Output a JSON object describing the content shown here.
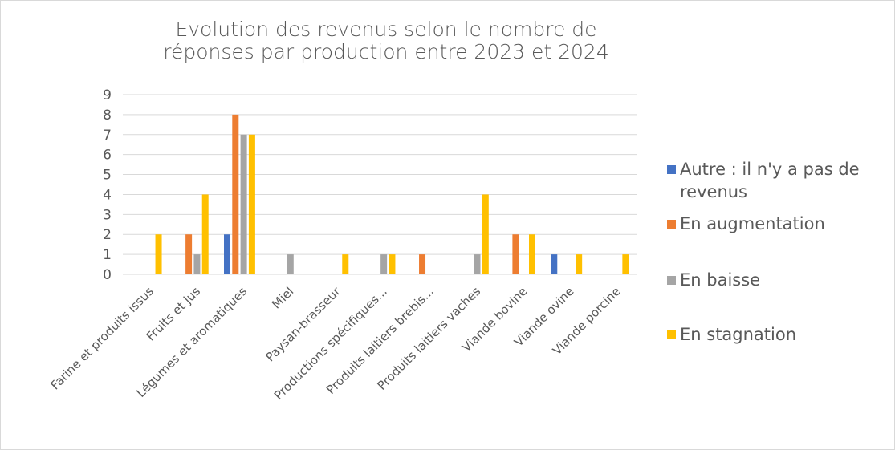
{
  "chart_data": {
    "type": "bar",
    "title": "Evolution des revenus selon le nombre de réponses par production entre 2023 et 2024",
    "categories": [
      "Farine et produits issus",
      "Fruits et jus",
      "Légumes et aromatiques",
      "Miel",
      "Paysan-brasseur",
      "Productions spécifiques...",
      "Produits laitiers brebis...",
      "Produits laitiers vaches",
      "Viande bovine",
      "Viande ovine",
      "Viande porcine"
    ],
    "series": [
      {
        "name": "Autre : il n'y a pas de revenus",
        "color": "#4472c4",
        "values": [
          0,
          0,
          2,
          0,
          0,
          0,
          0,
          0,
          0,
          1,
          0
        ]
      },
      {
        "name": "En augmentation",
        "color": "#ed7d31",
        "values": [
          0,
          2,
          8,
          0,
          0,
          0,
          1,
          0,
          2,
          0,
          0
        ]
      },
      {
        "name": "En baisse",
        "color": "#a5a5a5",
        "values": [
          0,
          1,
          7,
          1,
          0,
          1,
          0,
          1,
          0,
          0,
          0
        ]
      },
      {
        "name": "En stagnation",
        "color": "#ffc000",
        "values": [
          2,
          4,
          7,
          0,
          1,
          1,
          0,
          4,
          2,
          1,
          1
        ]
      }
    ],
    "ylim": [
      0,
      9
    ],
    "yticks": [
      0,
      1,
      2,
      3,
      4,
      5,
      6,
      7,
      8,
      9
    ],
    "grid": true,
    "legend": "right"
  }
}
